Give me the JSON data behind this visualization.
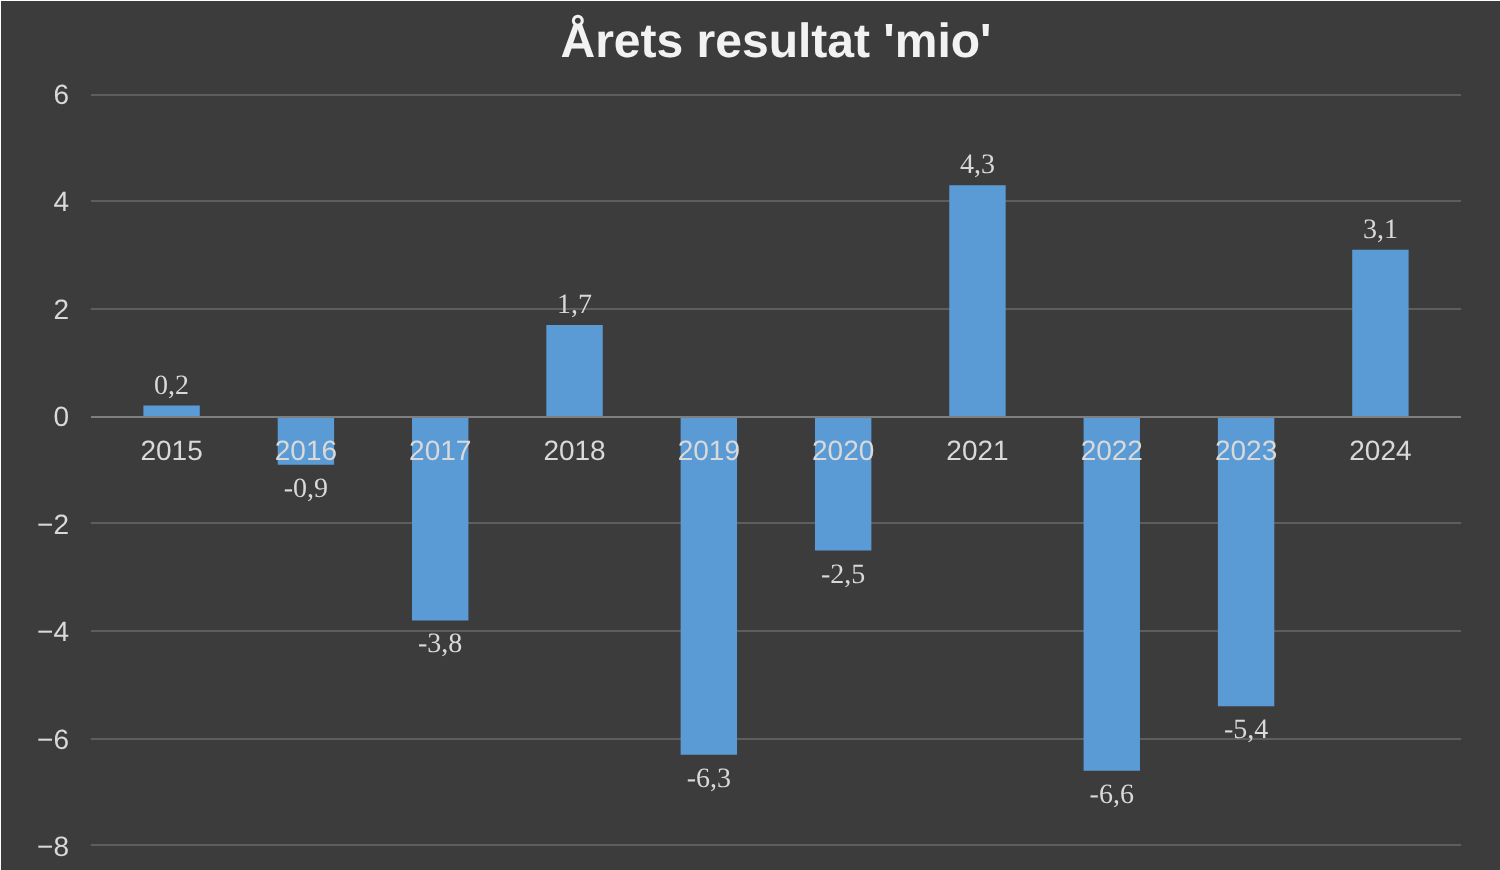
{
  "chart_data": {
    "type": "bar",
    "title": "Årets resultat 'mio'",
    "categories": [
      "2015",
      "2016",
      "2017",
      "2018",
      "2019",
      "2020",
      "2021",
      "2022",
      "2023",
      "2024"
    ],
    "values": [
      0.2,
      -0.9,
      -3.8,
      1.7,
      -6.3,
      -2.5,
      4.3,
      -6.6,
      -5.4,
      3.1
    ],
    "value_labels": [
      "0,2",
      "-0,9",
      "-3,8",
      "1,7",
      "-6,3",
      "-2,5",
      "4,3",
      "-6,6",
      "-5,4",
      "3,1"
    ],
    "color": "#5b9bd5",
    "ylim": [
      -8,
      6
    ],
    "yticks": [
      -8,
      -6,
      -4,
      -2,
      0,
      2,
      4,
      6
    ],
    "grid": "y"
  }
}
